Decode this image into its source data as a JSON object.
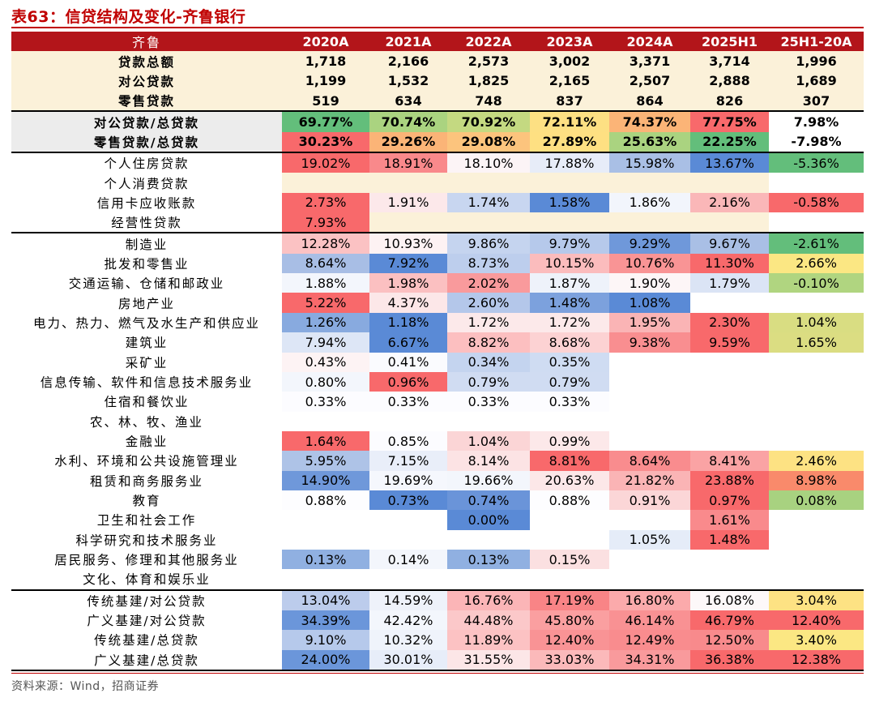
{
  "title": "表63：信贷结构及变化-齐鲁银行",
  "source": "资料来源：Wind，招商证券",
  "headers": [
    "齐鲁",
    "2020A",
    "2021A",
    "2022A",
    "2023A",
    "2024A",
    "2025H1",
    "25H1-20A"
  ],
  "colors": {
    "cream": "#fbf1d9",
    "grey": "#ececec",
    "header": "#b3151a"
  },
  "rows": [
    {
      "label": "贷款总额",
      "values": [
        "1,718",
        "2,166",
        "2,573",
        "3,002",
        "3,371",
        "3,714",
        "1,996"
      ],
      "bold": true,
      "bg": "#fbf1d9",
      "colors": [
        "",
        "",
        "",
        "",
        "",
        "",
        ""
      ]
    },
    {
      "label": "对公贷款",
      "values": [
        "1,199",
        "1,532",
        "1,825",
        "2,165",
        "2,507",
        "2,888",
        "1,689"
      ],
      "bold": true,
      "bg": "#fbf1d9",
      "colors": [
        "",
        "",
        "",
        "",
        "",
        "",
        ""
      ]
    },
    {
      "label": "零售贷款",
      "values": [
        "519",
        "634",
        "748",
        "837",
        "864",
        "826",
        "307"
      ],
      "bold": true,
      "bg": "#fbf1d9",
      "colors": [
        "",
        "",
        "",
        "",
        "",
        "",
        ""
      ]
    },
    {
      "label": "对公贷款/总贷款",
      "values": [
        "69.77%",
        "70.74%",
        "70.92%",
        "72.11%",
        "74.37%",
        "77.75%",
        "7.98%"
      ],
      "bold": true,
      "bg": "#ececec",
      "sec": true,
      "colors": [
        "#63be7b",
        "#aad380",
        "#c4d981",
        "#fde083",
        "#fbb477",
        "#f8696b",
        "#ffffff"
      ]
    },
    {
      "label": "零售贷款/总贷款",
      "values": [
        "30.23%",
        "29.26%",
        "29.08%",
        "27.89%",
        "25.63%",
        "22.25%",
        "-7.98%"
      ],
      "bold": true,
      "bg": "#ececec",
      "colors": [
        "#f8696b",
        "#fbb477",
        "#fcc47d",
        "#fee082",
        "#aad380",
        "#63be7b",
        "#ffffff"
      ]
    },
    {
      "label": "个人住房贷款",
      "values": [
        "19.02%",
        "18.91%",
        "18.10%",
        "17.88%",
        "15.98%",
        "13.67%",
        "-5.36%"
      ],
      "sec": true,
      "colors": [
        "#f8696b",
        "#f9898b",
        "#fcf4f6",
        "#e7ecf8",
        "#a9bfe5",
        "#5a8ad6",
        "#63be7b"
      ]
    },
    {
      "label": "个人消费贷款",
      "values": [
        "",
        "",
        "",
        "",
        "",
        "",
        ""
      ],
      "colors": [
        "#fbf1d9",
        "#fbf1d9",
        "#fbf1d9",
        "#fbf1d9",
        "#fbf1d9",
        "#fbf1d9",
        ""
      ]
    },
    {
      "label": "信用卡应收账款",
      "values": [
        "2.73%",
        "1.91%",
        "1.74%",
        "1.58%",
        "1.86%",
        "2.16%",
        "-0.58%"
      ],
      "colors": [
        "#f8696b",
        "#fce8ea",
        "#c8d6f0",
        "#5a8ad6",
        "#f2f5fc",
        "#fab7b8",
        "#f8696b"
      ]
    },
    {
      "label": "经营性贷款",
      "values": [
        "7.93%",
        "",
        "",
        "",
        "",
        "",
        ""
      ],
      "colors": [
        "#f8696b",
        "#fbf1d9",
        "#fbf1d9",
        "#fbf1d9",
        "#fbf1d9",
        "#fbf1d9",
        ""
      ]
    },
    {
      "label": "制造业",
      "values": [
        "12.28%",
        "10.93%",
        "9.86%",
        "9.79%",
        "9.29%",
        "9.67%",
        "-2.61%"
      ],
      "sec": true,
      "colors": [
        "#fbc2c3",
        "#fdf2f3",
        "#c5d4ef",
        "#b6c9eb",
        "#6f98da",
        "#a9bfe5",
        "#63be7b"
      ]
    },
    {
      "label": "批发和零售业",
      "values": [
        "8.64%",
        "7.92%",
        "8.73%",
        "10.15%",
        "10.76%",
        "11.30%",
        "2.66%"
      ],
      "colors": [
        "#a8bee5",
        "#5a8ad6",
        "#bdceed",
        "#fbbcbd",
        "#f99495",
        "#f8696b",
        "#fbe783"
      ]
    },
    {
      "label": "交通运输、仓储和邮政业",
      "values": [
        "1.88%",
        "1.98%",
        "2.02%",
        "1.87%",
        "1.90%",
        "1.79%",
        "-0.10%"
      ],
      "colors": [
        "#f3f6fc",
        "#fbc0c1",
        "#f99a9c",
        "#eef2fa",
        "#fdf6f7",
        "#dbe4f5",
        "#b0d580"
      ]
    },
    {
      "label": "房地产业",
      "values": [
        "5.22%",
        "4.37%",
        "2.60%",
        "1.48%",
        "1.08%",
        "",
        ""
      ],
      "colors": [
        "#f8696b",
        "#fce7e8",
        "#b4c7ea",
        "#7ca1dd",
        "#5a8ad6",
        "",
        ""
      ]
    },
    {
      "label": "电力、热力、燃气及水生产和供应业",
      "values": [
        "1.26%",
        "1.18%",
        "1.72%",
        "1.72%",
        "1.95%",
        "2.30%",
        "1.04%"
      ],
      "colors": [
        "#88aadf",
        "#5a8ad6",
        "#fce9ea",
        "#fce9ea",
        "#fab4b5",
        "#f8696b",
        "#d9dd82"
      ]
    },
    {
      "label": "建筑业",
      "values": [
        "7.94%",
        "6.67%",
        "8.82%",
        "8.68%",
        "9.38%",
        "9.59%",
        "1.65%"
      ],
      "colors": [
        "#dde6f6",
        "#5a8ad6",
        "#fcbfc0",
        "#fcd2d3",
        "#f98e90",
        "#f8696b",
        "#dbdd82"
      ]
    },
    {
      "label": "采矿业",
      "values": [
        "0.43%",
        "0.41%",
        "0.34%",
        "0.35%",
        "",
        "",
        ""
      ],
      "colors": [
        "#fdf3f4",
        "#fafbfe",
        "#c4d4ef",
        "#cfdcf2",
        "",
        "",
        ""
      ]
    },
    {
      "label": "信息传输、软件和信息技术服务业",
      "values": [
        "0.80%",
        "0.96%",
        "0.79%",
        "0.79%",
        "",
        "",
        ""
      ],
      "colors": [
        "#f3f6fc",
        "#f8696b",
        "#d0dcf2",
        "#d0dcf2",
        "",
        "",
        ""
      ]
    },
    {
      "label": "住宿和餐饮业",
      "values": [
        "0.33%",
        "0.33%",
        "0.33%",
        "0.33%",
        "",
        "",
        ""
      ],
      "colors": [
        "#fcfcff",
        "#fcfcff",
        "#fcfcff",
        "#fcfcff",
        "",
        "",
        ""
      ]
    },
    {
      "label": "农、林、牧、渔业",
      "values": [
        "",
        "",
        "",
        "",
        "",
        "",
        ""
      ],
      "colors": [
        "",
        "",
        "",
        "",
        "",
        "",
        ""
      ]
    },
    {
      "label": "金融业",
      "values": [
        "1.64%",
        "0.85%",
        "1.04%",
        "0.99%",
        "",
        "",
        ""
      ],
      "colors": [
        "#f8696b",
        "#fcfcff",
        "#fbd5d6",
        "#fce8e9",
        "",
        "",
        ""
      ]
    },
    {
      "label": "水利、环境和公共设施管理业",
      "values": [
        "5.95%",
        "7.15%",
        "8.14%",
        "8.81%",
        "8.64%",
        "8.41%",
        "2.46%"
      ],
      "colors": [
        "#aec3e7",
        "#e9eef9",
        "#fce3e4",
        "#f8696b",
        "#f98c8e",
        "#faa3a4",
        "#fde283"
      ]
    },
    {
      "label": "租赁和商务服务业",
      "values": [
        "14.90%",
        "19.69%",
        "19.66%",
        "20.63%",
        "21.82%",
        "23.88%",
        "8.98%"
      ],
      "colors": [
        "#6f98da",
        "#f5f7fd",
        "#f3f6fc",
        "#fce7e8",
        "#fab4b5",
        "#f8696b",
        "#f98a6b"
      ]
    },
    {
      "label": "教育",
      "values": [
        "0.88%",
        "0.73%",
        "0.74%",
        "0.88%",
        "0.91%",
        "0.97%",
        "0.08%"
      ],
      "colors": [
        "#fdfdff",
        "#5a8ad6",
        "#6a94d9",
        "#fdfdff",
        "#fbd6d7",
        "#f8696b",
        "#a8d280"
      ]
    },
    {
      "label": "卫生和社会工作",
      "values": [
        "",
        "",
        "0.00%",
        "",
        "",
        "1.61%",
        ""
      ],
      "colors": [
        "",
        "",
        "#5a8ad6",
        "",
        "",
        "#f98a8c",
        ""
      ]
    },
    {
      "label": "科学研究和技术服务业",
      "values": [
        "",
        "",
        "",
        "",
        "1.05%",
        "1.48%",
        ""
      ],
      "colors": [
        "",
        "",
        "",
        "",
        "#e5ecf8",
        "#f8696b",
        ""
      ]
    },
    {
      "label": "居民服务、修理和其他服务业",
      "values": [
        "0.13%",
        "0.14%",
        "0.13%",
        "0.15%",
        "",
        "",
        ""
      ],
      "colors": [
        "#90b0e1",
        "#f3f6fc",
        "#90b0e1",
        "#fbe0e1",
        "",
        "",
        ""
      ]
    },
    {
      "label": "文化、体育和娱乐业",
      "values": [
        "",
        "",
        "",
        "",
        "",
        "",
        ""
      ],
      "colors": [
        "",
        "",
        "",
        "",
        "",
        "",
        ""
      ]
    },
    {
      "label": "传统基建/对公贷款",
      "values": [
        "13.04%",
        "14.59%",
        "16.76%",
        "17.19%",
        "16.80%",
        "16.08%",
        "3.04%"
      ],
      "sec": true,
      "colors": [
        "#bcccec",
        "#eef2fa",
        "#fbb5b7",
        "#f98486",
        "#fbaaab",
        "#fdf8f9",
        "#fde283"
      ]
    },
    {
      "label": "广义基建/对公贷款",
      "values": [
        "34.39%",
        "42.42%",
        "44.48%",
        "45.80%",
        "46.14%",
        "46.79%",
        "12.40%"
      ],
      "colors": [
        "#6b96da",
        "#f3f6fc",
        "#fbc8c9",
        "#fa9fa0",
        "#f99193",
        "#f8696b",
        "#f8696b"
      ]
    },
    {
      "label": "传统基建/总贷款",
      "values": [
        "9.10%",
        "10.32%",
        "11.89%",
        "12.40%",
        "12.49%",
        "12.50%",
        "3.40%"
      ],
      "colors": [
        "#b6c9eb",
        "#eff3fb",
        "#fcc2c3",
        "#f99395",
        "#f98c8e",
        "#f88a8c",
        "#fbe783"
      ]
    },
    {
      "label": "广义基建/总贷款",
      "values": [
        "24.00%",
        "30.01%",
        "31.55%",
        "33.03%",
        "34.31%",
        "36.38%",
        "12.38%"
      ],
      "last": true,
      "colors": [
        "#6b96da",
        "#e7edf9",
        "#fce6e7",
        "#fbb9ba",
        "#f99a9c",
        "#f8696b",
        "#f8696b"
      ]
    }
  ]
}
